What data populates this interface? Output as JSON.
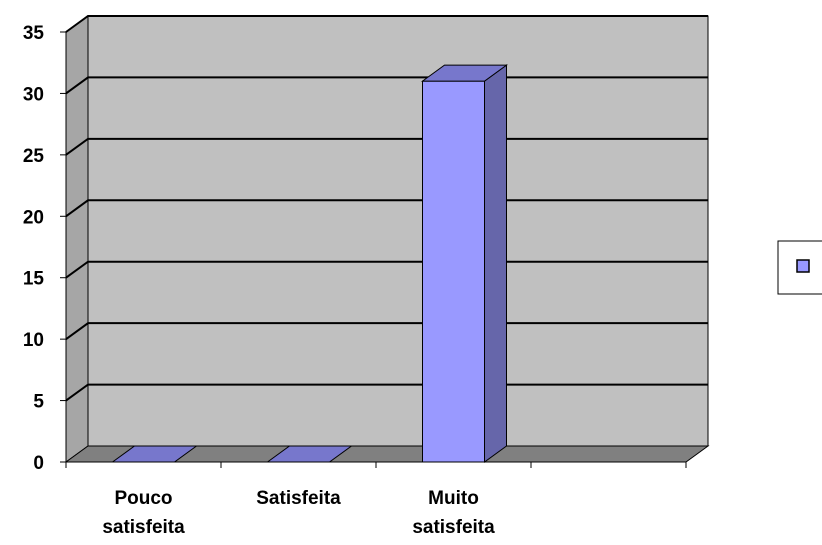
{
  "chart_data": {
    "type": "bar",
    "style": "3d",
    "categories": [
      "Pouco satisfeita",
      "Satisfeita",
      "Muito satisfeita",
      ""
    ],
    "series": [
      {
        "values": [
          0,
          0,
          31,
          0
        ]
      }
    ],
    "ylim": [
      0,
      35
    ],
    "yticks": [
      0,
      5,
      10,
      15,
      20,
      25,
      30,
      35
    ],
    "grid": true,
    "legend_position": "right",
    "colors": {
      "bar_front": "#9999ff",
      "bar_side": "#6666aa",
      "bar_top": "#7777cc",
      "back_wall": "#c0c0c0",
      "side_wall": "#a6a6a6",
      "floor": "#808080"
    }
  }
}
